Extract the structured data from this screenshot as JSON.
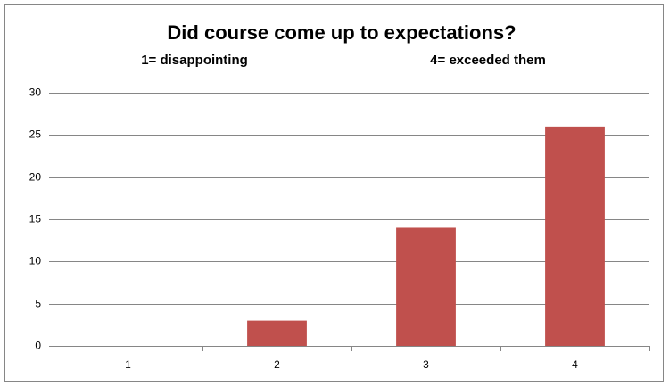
{
  "chart_data": {
    "type": "bar",
    "title": "Did course come up to expectations?",
    "annotations": [
      "1= disappointing",
      "4= exceeded them"
    ],
    "categories": [
      "1",
      "2",
      "3",
      "4"
    ],
    "values": [
      0,
      3,
      14,
      26
    ],
    "color": "#c0504d",
    "ylim": [
      0,
      30
    ],
    "yticks": [
      0,
      5,
      10,
      15,
      20,
      25,
      30
    ],
    "grid": true
  }
}
